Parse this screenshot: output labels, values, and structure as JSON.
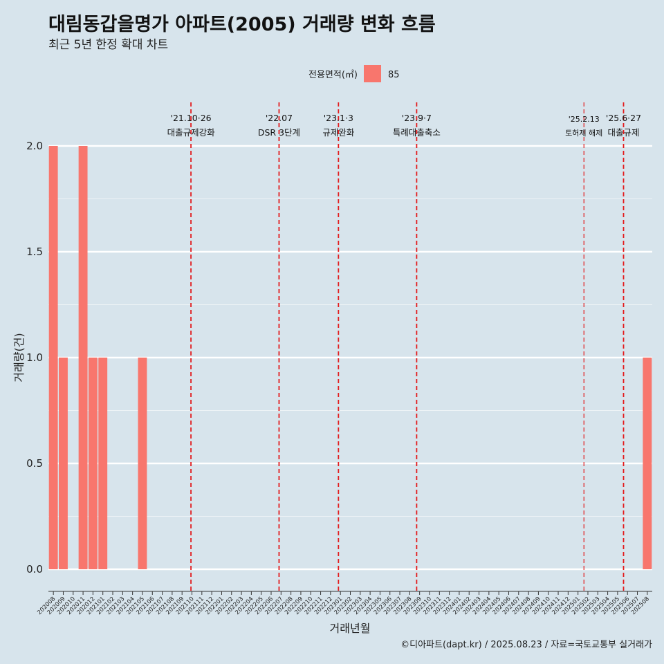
{
  "title": "대림동갑을명가 아파트(2005) 거래량 변화 흐름",
  "subtitle": "최근 5년 한정 확대 차트",
  "legend": {
    "title": "전용면적(㎡)",
    "label": "85",
    "color": "#f8766d"
  },
  "caption": "©디아파트(dapt.kr) / 2025.08.23 / 자료=국토교통부 실거래가",
  "colors": {
    "background": "#d7e4ec",
    "bar": "#f8766d",
    "grid": "#ffffff",
    "event_line": "#e31a1c"
  },
  "chart_data": {
    "type": "bar",
    "xlabel": "거래년월",
    "ylabel": "거래량(건)",
    "ylim": [
      0,
      2
    ],
    "yticks": [
      "0.0",
      "0.5",
      "1.0",
      "1.5",
      "2.0"
    ],
    "categories": [
      "202008",
      "202009",
      "202010",
      "202011",
      "202012",
      "202101",
      "202102",
      "202103",
      "202104",
      "202105",
      "202106",
      "202107",
      "202108",
      "202109",
      "202110",
      "202111",
      "202112",
      "202201",
      "202202",
      "202203",
      "202204",
      "202205",
      "202206",
      "202207",
      "202208",
      "202209",
      "202210",
      "202211",
      "202212",
      "202301",
      "202302",
      "202303",
      "202304",
      "202305",
      "202306",
      "202307",
      "202308",
      "202309",
      "202310",
      "202311",
      "202312",
      "202401",
      "202402",
      "202403",
      "202404",
      "202405",
      "202406",
      "202407",
      "202408",
      "202409",
      "202410",
      "202411",
      "202412",
      "202501",
      "202502",
      "202503",
      "202504",
      "202505",
      "202506",
      "202507",
      "202508"
    ],
    "series": [
      {
        "name": "85",
        "values": [
          2,
          1,
          0,
          2,
          1,
          1,
          0,
          0,
          0,
          1,
          0,
          0,
          0,
          0,
          0,
          0,
          0,
          0,
          0,
          0,
          0,
          0,
          0,
          0,
          0,
          0,
          0,
          0,
          0,
          0,
          0,
          0,
          0,
          0,
          0,
          0,
          0,
          0,
          0,
          0,
          0,
          0,
          0,
          0,
          0,
          0,
          0,
          0,
          0,
          0,
          0,
          0,
          0,
          0,
          0,
          0,
          0,
          0,
          0,
          0,
          1
        ]
      }
    ],
    "annotations": [
      {
        "date": "'21.10·26",
        "label": "대출규제강화",
        "month_index": 14.4
      },
      {
        "date": "'22.07",
        "label": "DSR 3단계",
        "month_index": 23.3
      },
      {
        "date": "'23.1·3",
        "label": "규제완화",
        "month_index": 29.3
      },
      {
        "date": "'23.9·7",
        "label": "특례대출축소",
        "month_index": 37.2
      },
      {
        "date": "'25.2.13",
        "label": "토허제 해제",
        "month_index": 54.1,
        "small": true
      },
      {
        "date": "'25.6·27",
        "label": "대출규제",
        "month_index": 58.1
      }
    ],
    "grid": true,
    "legend_position": "top"
  }
}
